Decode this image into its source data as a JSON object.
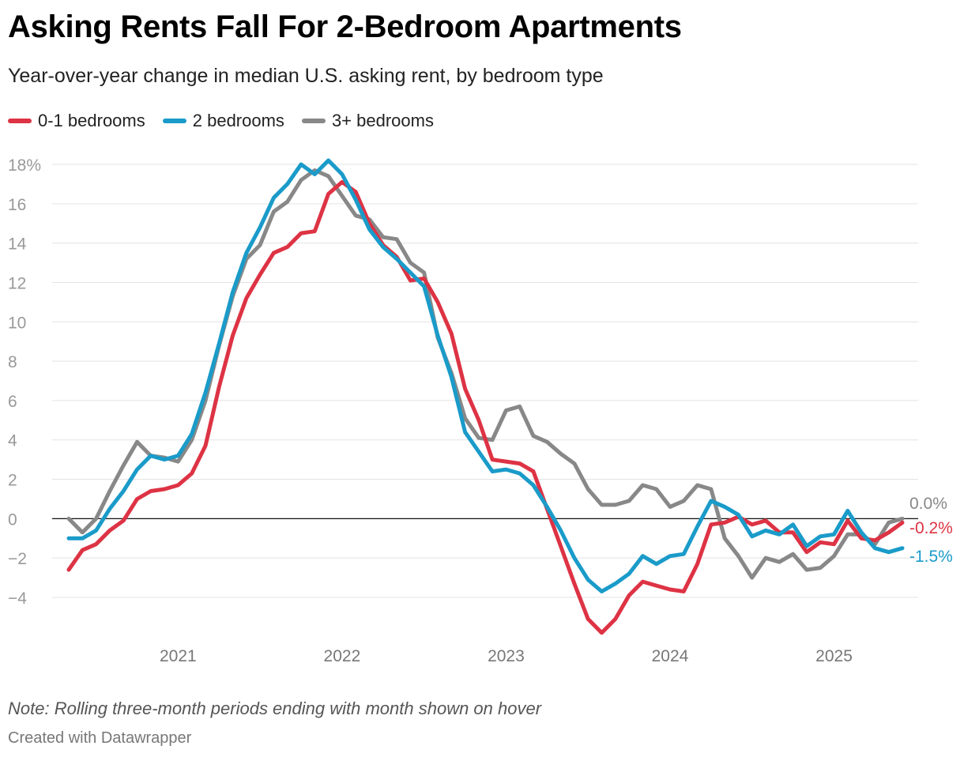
{
  "title": "Asking Rents Fall For 2-Bedroom Apartments",
  "subtitle": "Year-over-year change in median U.S. asking rent, by bedroom type",
  "note": "Note: Rolling three-month periods ending with month shown on hover",
  "credit": "Created with Datawrapper",
  "colors": {
    "s01": "#dd3344",
    "s2": "#1a9bc9",
    "s3": "#888888"
  },
  "chart_data": {
    "type": "line",
    "title": "Asking Rents Fall For 2-Bedroom Apartments",
    "xlabel": "",
    "ylabel": "",
    "ylim": [
      -6,
      18
    ],
    "xlim": [
      2020.3333,
      2025.4167
    ],
    "y_ticks": [
      18,
      16,
      14,
      12,
      10,
      8,
      6,
      4,
      2,
      0,
      -2,
      -4
    ],
    "y_tick_labels": [
      "18%",
      "16",
      "14",
      "12",
      "10",
      "8",
      "6",
      "4",
      "2",
      "0",
      "−2",
      "−4"
    ],
    "x_ticks": [
      2021,
      2022,
      2023,
      2024,
      2025
    ],
    "x_tick_labels": [
      "2021",
      "2022",
      "2023",
      "2024",
      "2025"
    ],
    "legend_position": "top-left",
    "start": "2020-05",
    "frequency": "monthly",
    "series": [
      {
        "name": "0-1 bedrooms",
        "color": "#dd3344",
        "end_label": "-0.2%",
        "values": [
          -2.6,
          -1.6,
          -1.3,
          -0.6,
          -0.1,
          1.0,
          1.4,
          1.5,
          1.7,
          2.3,
          3.7,
          6.7,
          9.3,
          11.2,
          12.4,
          13.5,
          13.8,
          14.5,
          14.6,
          16.5,
          17.1,
          16.6,
          15.0,
          13.9,
          13.3,
          12.1,
          12.2,
          11.0,
          9.4,
          6.6,
          5.0,
          3.0,
          2.9,
          2.8,
          2.4,
          0.5,
          -1.4,
          -3.3,
          -5.1,
          -5.8,
          -5.1,
          -3.9,
          -3.2,
          -3.4,
          -3.6,
          -3.7,
          -2.3,
          -0.3,
          -0.2,
          0.1,
          -0.3,
          -0.1,
          -0.7,
          -0.7,
          -1.7,
          -1.2,
          -1.3,
          -0.1,
          -1.0,
          -1.1,
          -0.7,
          -0.2
        ]
      },
      {
        "name": "2 bedrooms",
        "color": "#1a9bc9",
        "end_label": "-1.5%",
        "values": [
          -1.0,
          -1.0,
          -0.6,
          0.5,
          1.4,
          2.5,
          3.2,
          3.0,
          3.2,
          4.3,
          6.4,
          8.9,
          11.5,
          13.5,
          14.8,
          16.3,
          17.0,
          18.0,
          17.5,
          18.2,
          17.5,
          16.2,
          14.7,
          13.8,
          13.2,
          12.5,
          11.8,
          9.3,
          7.2,
          4.4,
          3.4,
          2.4,
          2.5,
          2.3,
          1.7,
          0.6,
          -0.6,
          -2.0,
          -3.1,
          -3.7,
          -3.3,
          -2.8,
          -1.9,
          -2.3,
          -1.9,
          -1.8,
          -0.4,
          0.9,
          0.6,
          0.2,
          -0.9,
          -0.6,
          -0.8,
          -0.3,
          -1.4,
          -0.9,
          -0.8,
          0.4,
          -0.7,
          -1.5,
          -1.7,
          -1.5
        ]
      },
      {
        "name": "3+ bedrooms",
        "color": "#888888",
        "end_label": "0.0%",
        "values": [
          0.0,
          -0.7,
          0.0,
          1.4,
          2.7,
          3.9,
          3.2,
          3.1,
          2.9,
          4.0,
          6.0,
          8.8,
          11.3,
          13.2,
          13.9,
          15.6,
          16.1,
          17.2,
          17.7,
          17.4,
          16.4,
          15.4,
          15.2,
          14.3,
          14.2,
          13.0,
          12.5,
          9.2,
          7.4,
          5.1,
          4.1,
          4.0,
          5.5,
          5.7,
          4.2,
          3.9,
          3.3,
          2.8,
          1.5,
          0.7,
          0.7,
          0.9,
          1.7,
          1.5,
          0.6,
          0.9,
          1.7,
          1.5,
          -1.0,
          -1.9,
          -3.0,
          -2.0,
          -2.2,
          -1.8,
          -2.6,
          -2.5,
          -1.9,
          -0.8,
          -0.8,
          -1.3,
          -0.2,
          0.0
        ]
      }
    ]
  }
}
